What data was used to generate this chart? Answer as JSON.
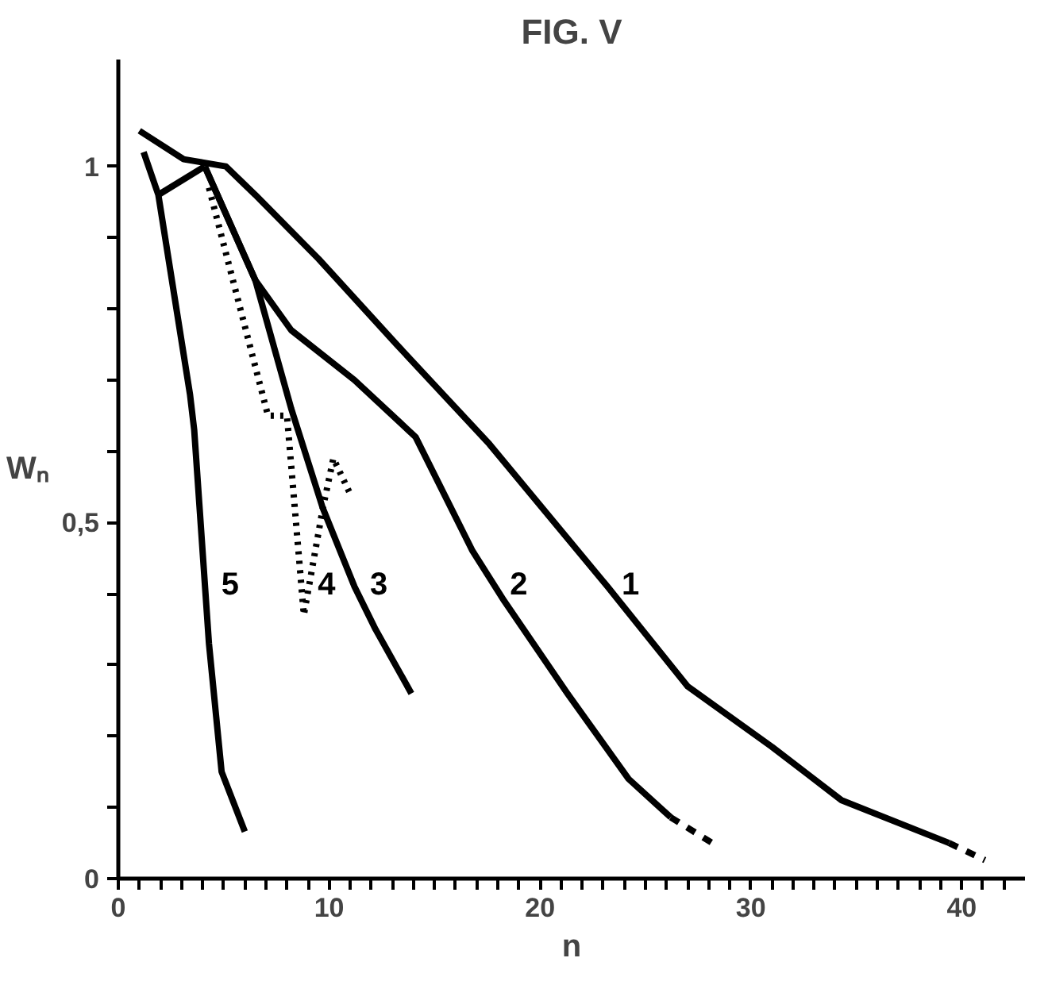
{
  "chart_data": {
    "type": "line",
    "title": "FIG. V",
    "xlabel": "n",
    "ylabel": "Wₙ",
    "xlim": [
      0,
      43
    ],
    "ylim": [
      0,
      1.15
    ],
    "xticks": [
      0,
      {
        "value": 1,
        "label": null
      },
      {
        "value": 2,
        "label": null
      },
      {
        "value": 3,
        "label": null
      },
      {
        "value": 4,
        "label": null
      },
      {
        "value": 5,
        "label": null
      },
      {
        "value": 6,
        "label": null
      },
      {
        "value": 7,
        "label": null
      },
      {
        "value": 8,
        "label": null
      },
      {
        "value": 9,
        "label": null
      },
      10,
      {
        "value": 11,
        "label": null
      },
      {
        "value": 12,
        "label": null
      },
      {
        "value": 13,
        "label": null
      },
      {
        "value": 14,
        "label": null
      },
      {
        "value": 15,
        "label": null
      },
      {
        "value": 16,
        "label": null
      },
      {
        "value": 17,
        "label": null
      },
      {
        "value": 18,
        "label": null
      },
      {
        "value": 19,
        "label": null
      },
      20,
      {
        "value": 21,
        "label": null
      },
      {
        "value": 22,
        "label": null
      },
      {
        "value": 23,
        "label": null
      },
      {
        "value": 24,
        "label": null
      },
      {
        "value": 25,
        "label": null
      },
      {
        "value": 26,
        "label": null
      },
      {
        "value": 27,
        "label": null
      },
      {
        "value": 28,
        "label": null
      },
      {
        "value": 29,
        "label": null
      },
      30,
      {
        "value": 31,
        "label": null
      },
      {
        "value": 32,
        "label": null
      },
      {
        "value": 33,
        "label": null
      },
      {
        "value": 34,
        "label": null
      },
      {
        "value": 35,
        "label": null
      },
      {
        "value": 36,
        "label": null
      },
      {
        "value": 37,
        "label": null
      },
      {
        "value": 38,
        "label": null
      },
      {
        "value": 39,
        "label": null
      },
      40,
      {
        "value": 41,
        "label": null
      },
      {
        "value": 42,
        "label": null
      }
    ],
    "yticks": [
      0,
      {
        "value": 0.1,
        "label": null
      },
      {
        "value": 0.2,
        "label": null
      },
      {
        "value": 0.3,
        "label": null
      },
      {
        "value": 0.4,
        "label": null
      },
      {
        "value": 0.5,
        "label": "0,5"
      },
      {
        "value": 0.6,
        "label": null
      },
      {
        "value": 0.7,
        "label": null
      },
      {
        "value": 0.8,
        "label": null
      },
      {
        "value": 0.9,
        "label": null
      },
      1
    ],
    "series": [
      {
        "name": "1",
        "color": "#000000",
        "line_style": "solid",
        "x": [
          1.0,
          3.1,
          5.1,
          6.5,
          9.5,
          13.2,
          17.6,
          23.2,
          27,
          31,
          34.3,
          39.4
        ],
        "values": [
          1.05,
          1.01,
          1.0,
          0.96,
          0.87,
          0.75,
          0.61,
          0.41,
          0.27,
          0.185,
          0.11,
          0.05
        ]
      },
      {
        "color": "#000000",
        "line_style": "dashed",
        "x": [
          39.4,
          41.1
        ],
        "values": [
          0.05,
          0.026
        ]
      },
      {
        "name": "2",
        "color": "#000000",
        "line_style": "solid",
        "x": [
          4.1,
          6.5,
          8.2,
          11.2,
          14.1,
          16.8,
          18.3,
          21.3,
          24.2,
          26.2
        ],
        "values": [
          1.0,
          0.84,
          0.77,
          0.7,
          0.62,
          0.46,
          0.39,
          0.26,
          0.14,
          0.086
        ]
      },
      {
        "color": "#000000",
        "line_style": "dashed",
        "x": [
          26.2,
          28.5
        ],
        "values": [
          0.086,
          0.044
        ]
      },
      {
        "name": "3",
        "color": "#000000",
        "line_style": "solid",
        "x": [
          4.1,
          6.5,
          8.2,
          9.7,
          11.2,
          12.2,
          13.9
        ],
        "values": [
          1.0,
          0.84,
          0.66,
          0.52,
          0.41,
          0.35,
          0.26
        ]
      },
      {
        "name": "4",
        "color": "#000000",
        "line_style": "dotted",
        "x": [
          4.3,
          7.1,
          8.0,
          8.8,
          9.7,
          10.2,
          11.0
        ],
        "values": [
          0.97,
          0.65,
          0.65,
          0.37,
          0.52,
          0.59,
          0.54
        ]
      },
      {
        "name": "5",
        "color": "#000000",
        "line_style": "solid",
        "x": [
          1.2,
          1.9,
          3.4,
          3.6,
          4.3,
          4.9,
          6.0
        ],
        "values": [
          1.02,
          0.96,
          0.68,
          0.63,
          0.33,
          0.15,
          0.066
        ]
      },
      {
        "color": "#000000",
        "line_style": "solid",
        "x": [
          1.9,
          4.1
        ],
        "values": [
          0.96,
          1.0
        ]
      }
    ]
  }
}
